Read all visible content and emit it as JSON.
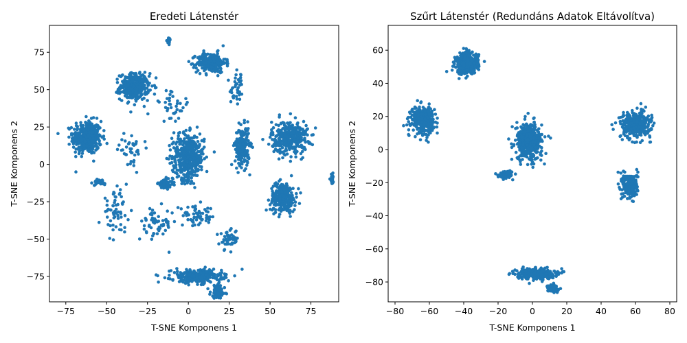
{
  "chart_data": [
    {
      "type": "scatter",
      "title": "Eredeti Látenstér",
      "xlabel": "T-SNE Komponens 1",
      "ylabel": "T-SNE Komponens 2",
      "xlim": [
        -85,
        92
      ],
      "ylim": [
        -92,
        93
      ],
      "xticks": [
        -75,
        -50,
        -25,
        0,
        25,
        50,
        75
      ],
      "yticks": [
        -75,
        -50,
        -25,
        0,
        25,
        50,
        75
      ],
      "xtick_labels": [
        "−75",
        "−50",
        "−25",
        "0",
        "25",
        "50",
        "75"
      ],
      "ytick_labels": [
        "−75",
        "−50",
        "−25",
        "0",
        "25",
        "50",
        "75"
      ],
      "color": "#1f77b4",
      "grid": false,
      "clusters": [
        {
          "x": -62,
          "y": 18,
          "sx": 8,
          "sy": 10,
          "n": 400
        },
        {
          "x": -33,
          "y": 52,
          "sx": 8,
          "sy": 8,
          "n": 350
        },
        {
          "x": 14,
          "y": 68,
          "sx": 8,
          "sy": 6,
          "n": 250
        },
        {
          "x": 0,
          "y": 5,
          "sx": 9,
          "sy": 14,
          "n": 450
        },
        {
          "x": 33,
          "y": 12,
          "sx": 4,
          "sy": 12,
          "n": 220
        },
        {
          "x": 62,
          "y": 18,
          "sx": 10,
          "sy": 10,
          "n": 350
        },
        {
          "x": 58,
          "y": -22,
          "sx": 7,
          "sy": 9,
          "n": 280
        },
        {
          "x": 5,
          "y": -75,
          "sx": 14,
          "sy": 4,
          "n": 300
        },
        {
          "x": 18,
          "y": -85,
          "sx": 4,
          "sy": 4,
          "n": 100
        },
        {
          "x": -14,
          "y": -13,
          "sx": 4,
          "sy": 3,
          "n": 80
        },
        {
          "x": -35,
          "y": 10,
          "sx": 7,
          "sy": 9,
          "n": 40
        },
        {
          "x": -45,
          "y": -32,
          "sx": 7,
          "sy": 12,
          "n": 60
        },
        {
          "x": -20,
          "y": -40,
          "sx": 9,
          "sy": 10,
          "n": 60
        },
        {
          "x": 5,
          "y": -35,
          "sx": 12,
          "sy": 6,
          "n": 60
        },
        {
          "x": 25,
          "y": -50,
          "sx": 5,
          "sy": 6,
          "n": 50
        },
        {
          "x": 30,
          "y": 50,
          "sx": 4,
          "sy": 10,
          "n": 40
        },
        {
          "x": -10,
          "y": 40,
          "sx": 10,
          "sy": 10,
          "n": 40
        },
        {
          "x": 88,
          "y": -10,
          "sx": 1,
          "sy": 3,
          "n": 20
        },
        {
          "x": -12,
          "y": 83,
          "sx": 1,
          "sy": 2,
          "n": 15
        },
        {
          "x": -55,
          "y": -12,
          "sx": 5,
          "sy": 2,
          "n": 30
        }
      ]
    },
    {
      "type": "scatter",
      "title": "Szűrt Látenstér (Redundáns Adatok Eltávolítva)",
      "xlabel": "T-SNE Komponens 1",
      "ylabel": "T-SNE Komponens 2",
      "xlim": [
        -84,
        84
      ],
      "ylim": [
        -92,
        75
      ],
      "xticks": [
        -80,
        -60,
        -40,
        -20,
        0,
        20,
        40,
        60,
        80
      ],
      "yticks": [
        -80,
        -60,
        -40,
        -20,
        0,
        20,
        40,
        60
      ],
      "xtick_labels": [
        "−80",
        "−60",
        "−40",
        "−20",
        "0",
        "20",
        "40",
        "60",
        "80"
      ],
      "ytick_labels": [
        "−80",
        "−60",
        "−40",
        "−20",
        "0",
        "20",
        "40",
        "60"
      ],
      "color": "#1f77b4",
      "grid": false,
      "clusters": [
        {
          "x": -64,
          "y": 18,
          "sx": 6,
          "sy": 7,
          "n": 350
        },
        {
          "x": -38,
          "y": 52,
          "sx": 6,
          "sy": 6,
          "n": 350
        },
        {
          "x": -2,
          "y": 5,
          "sx": 7,
          "sy": 10,
          "n": 420
        },
        {
          "x": -15,
          "y": -15,
          "sx": 4,
          "sy": 2,
          "n": 80
        },
        {
          "x": 60,
          "y": 15,
          "sx": 8,
          "sy": 7,
          "n": 350
        },
        {
          "x": 57,
          "y": -22,
          "sx": 4,
          "sy": 7,
          "n": 250
        },
        {
          "x": 2,
          "y": -75,
          "sx": 10,
          "sy": 3,
          "n": 280
        },
        {
          "x": 12,
          "y": -84,
          "sx": 3,
          "sy": 2,
          "n": 80
        }
      ]
    }
  ]
}
